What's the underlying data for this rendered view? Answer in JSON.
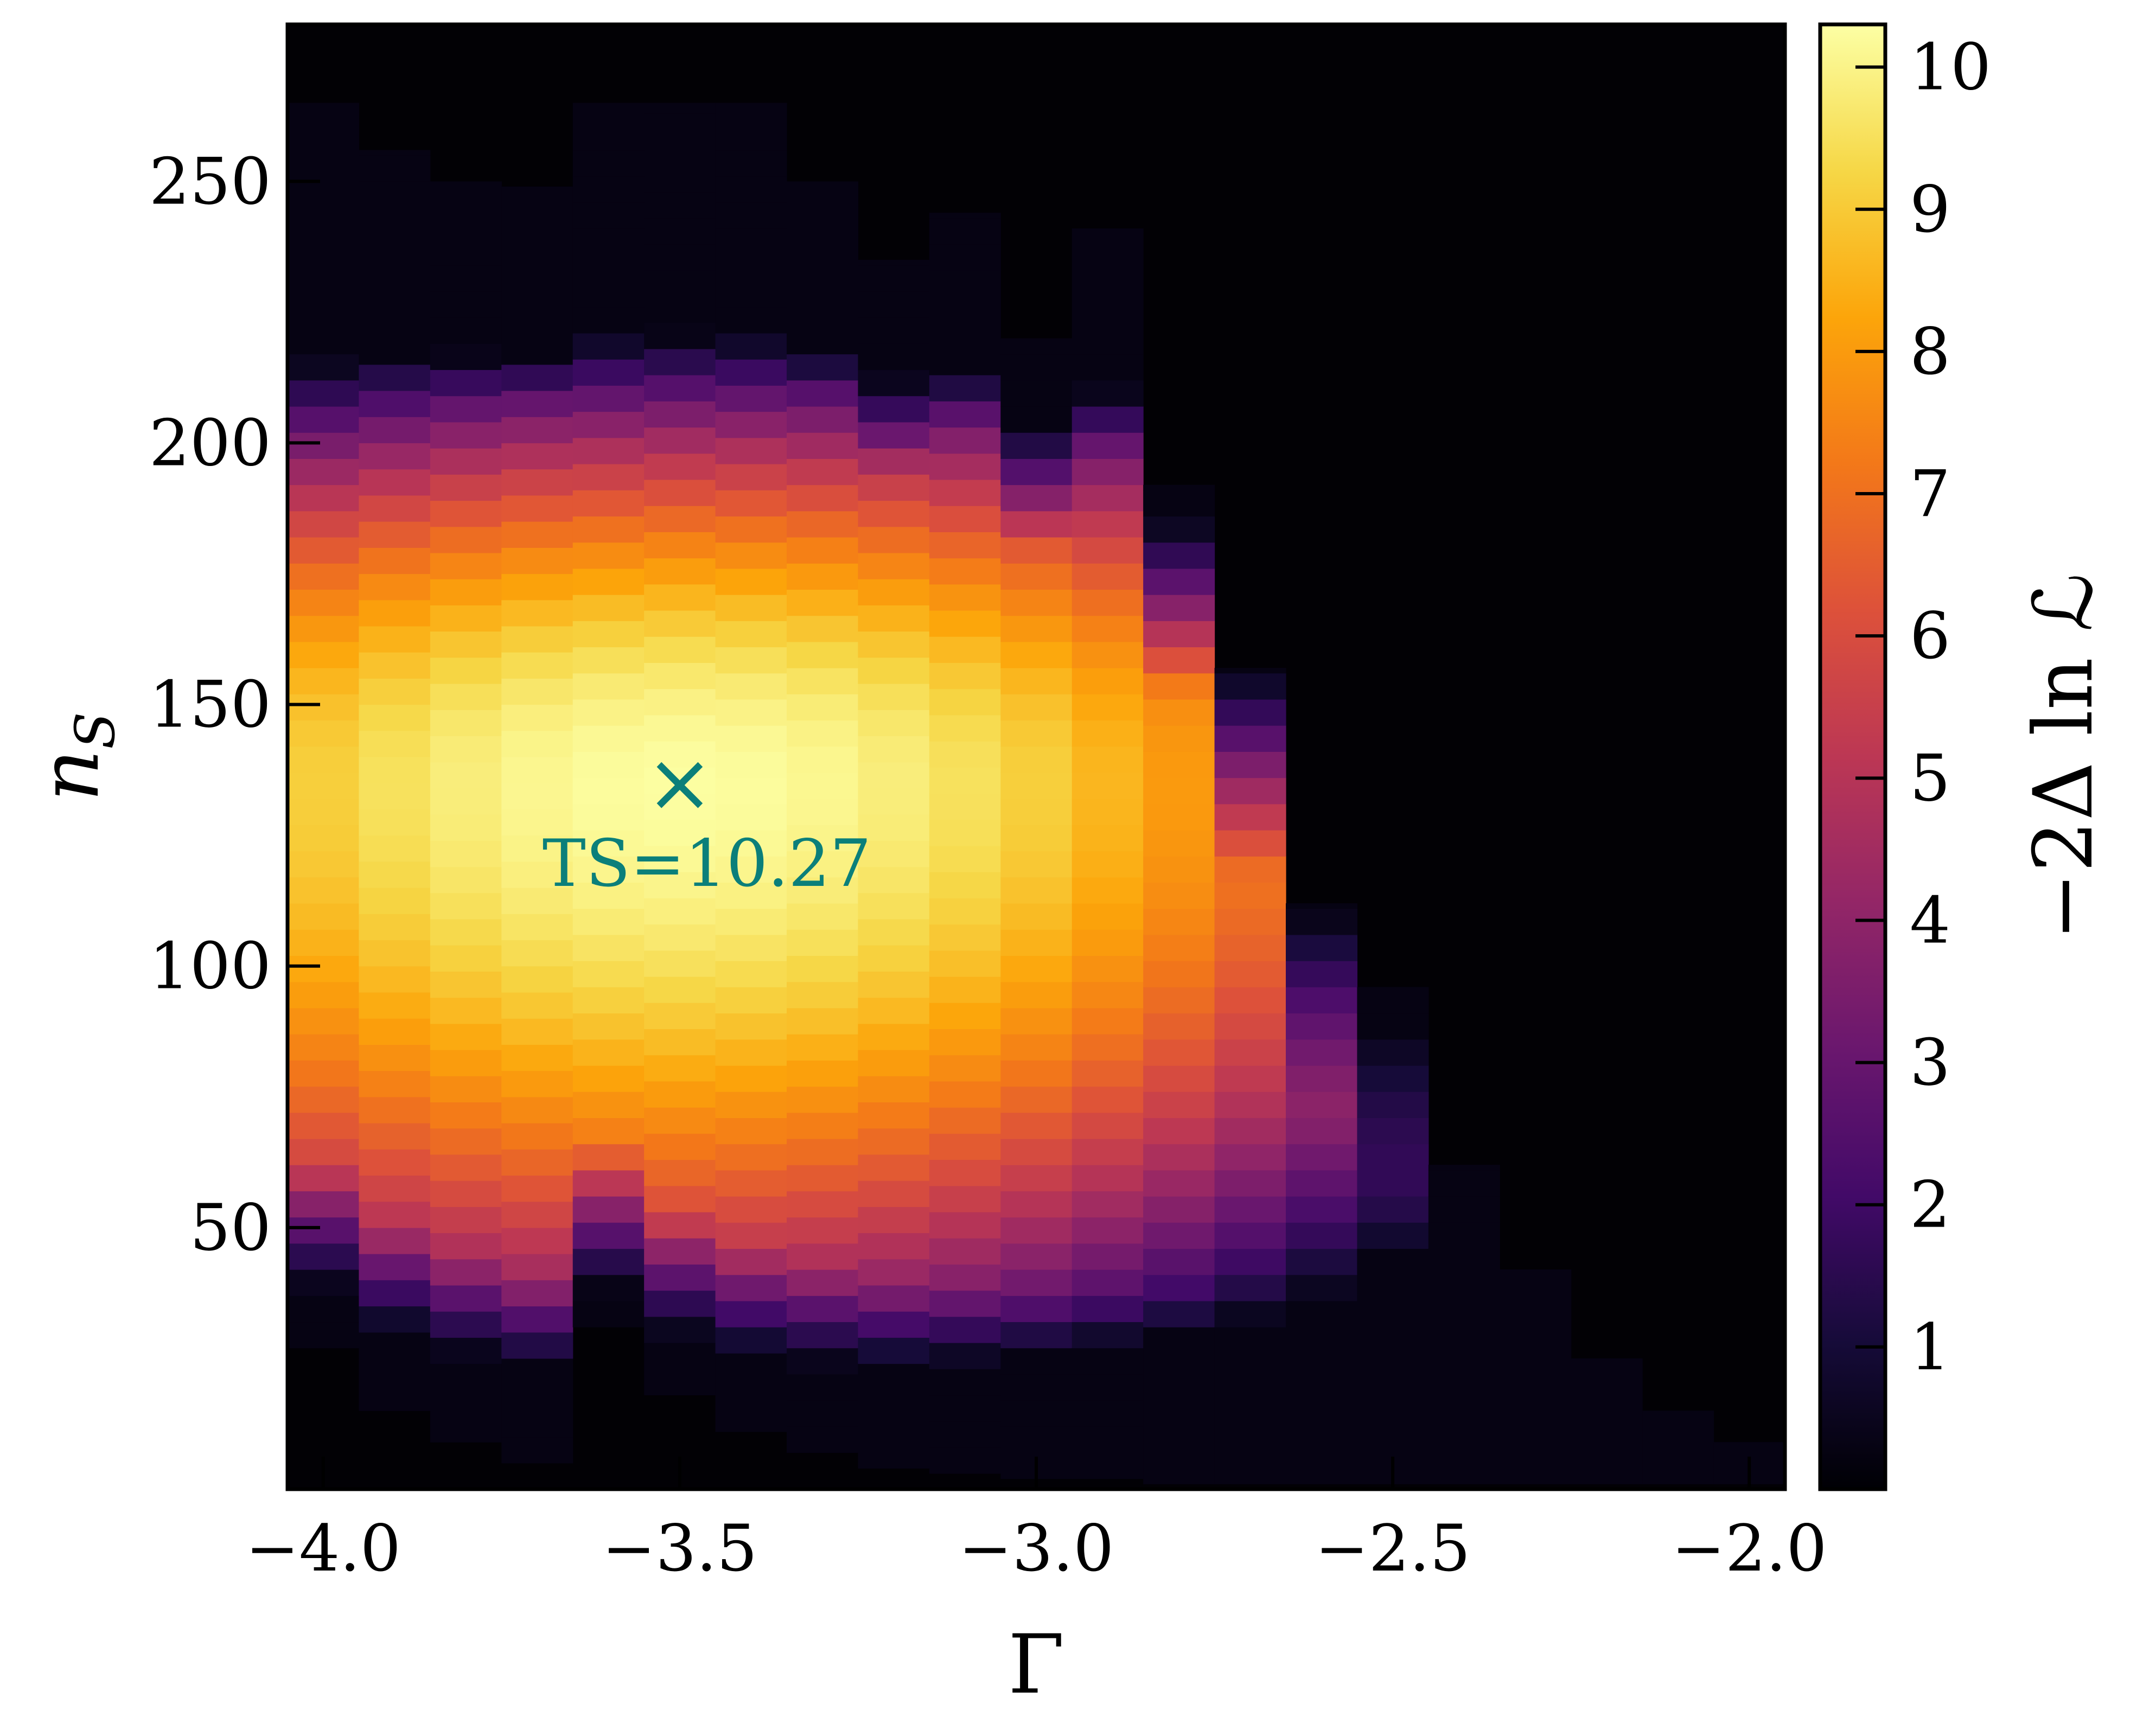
{
  "chart_data": {
    "type": "heatmap",
    "xlabel": "Γ",
    "ylabel": "n",
    "ylabel_sub": "S",
    "colorbar_label": "−2Δ ln ℒ",
    "colormap": "inferno",
    "xlim": [
      -4.05,
      -1.95
    ],
    "ylim": [
      0,
      280
    ],
    "zlim": [
      0,
      10.3
    ],
    "x_ticks": [
      -4.0,
      -3.5,
      -3.0,
      -2.5,
      -2.0
    ],
    "x_tick_labels": [
      "−4.0",
      "−3.5",
      "−3.0",
      "−2.5",
      "−2.0"
    ],
    "y_ticks": [
      50,
      100,
      150,
      200,
      250
    ],
    "y_tick_labels": [
      "50",
      "100",
      "150",
      "200",
      "250"
    ],
    "colorbar_ticks": [
      1,
      2,
      3,
      4,
      5,
      6,
      7,
      8,
      9,
      10
    ],
    "colorbar_tick_labels": [
      "1",
      "2",
      "3",
      "4",
      "5",
      "6",
      "7",
      "8",
      "9",
      "10"
    ],
    "gamma_columns": [
      {
        "x0": -4.05,
        "x1": -3.95,
        "y_low": 27,
        "y_high": 265
      },
      {
        "x0": -3.95,
        "x1": -3.85,
        "y_low": 15,
        "y_high": 256
      },
      {
        "x0": -3.85,
        "x1": -3.75,
        "y_low": 9,
        "y_high": 250
      },
      {
        "x0": -3.75,
        "x1": -3.65,
        "y_low": 5,
        "y_high": 249
      },
      {
        "x0": -3.65,
        "x1": -3.55,
        "y_low": 31,
        "y_high": 265
      },
      {
        "x0": -3.55,
        "x1": -3.45,
        "y_low": 18,
        "y_high": 265
      },
      {
        "x0": -3.45,
        "x1": -3.35,
        "y_low": 11,
        "y_high": 265
      },
      {
        "x0": -3.35,
        "x1": -3.25,
        "y_low": 7,
        "y_high": 250
      },
      {
        "x0": -3.25,
        "x1": -3.15,
        "y_low": 4,
        "y_high": 235
      },
      {
        "x0": -3.15,
        "x1": -3.05,
        "y_low": 3,
        "y_high": 244
      },
      {
        "x0": -3.05,
        "x1": -2.95,
        "y_low": 2,
        "y_high": 220
      },
      {
        "x0": -2.95,
        "x1": -2.85,
        "y_low": 2,
        "y_high": 241
      },
      {
        "x0": -2.85,
        "x1": -2.75,
        "y_low": 1,
        "y_high": 192
      },
      {
        "x0": -2.75,
        "x1": -2.65,
        "y_low": 1,
        "y_high": 157
      },
      {
        "x0": -2.65,
        "x1": -2.55,
        "y_low": 1,
        "y_high": 112
      },
      {
        "x0": -2.55,
        "x1": -2.45,
        "y_low": 1,
        "y_high": 96
      },
      {
        "x0": -2.45,
        "x1": -2.35,
        "y_low": 1,
        "y_high": 62
      },
      {
        "x0": -2.35,
        "x1": -2.25,
        "y_low": 1,
        "y_high": 42
      },
      {
        "x0": -2.25,
        "x1": -2.15,
        "y_low": 1,
        "y_high": 25
      },
      {
        "x0": -2.15,
        "x1": -2.05,
        "y_low": 1,
        "y_high": 15
      },
      {
        "x0": -2.05,
        "x1": -1.95,
        "y_low": 1,
        "y_high": 9
      }
    ],
    "best_fit": {
      "gamma": -3.5,
      "ns": 135,
      "marker": "×",
      "label": "TS=10.27",
      "color": "#0b7f7a"
    }
  }
}
